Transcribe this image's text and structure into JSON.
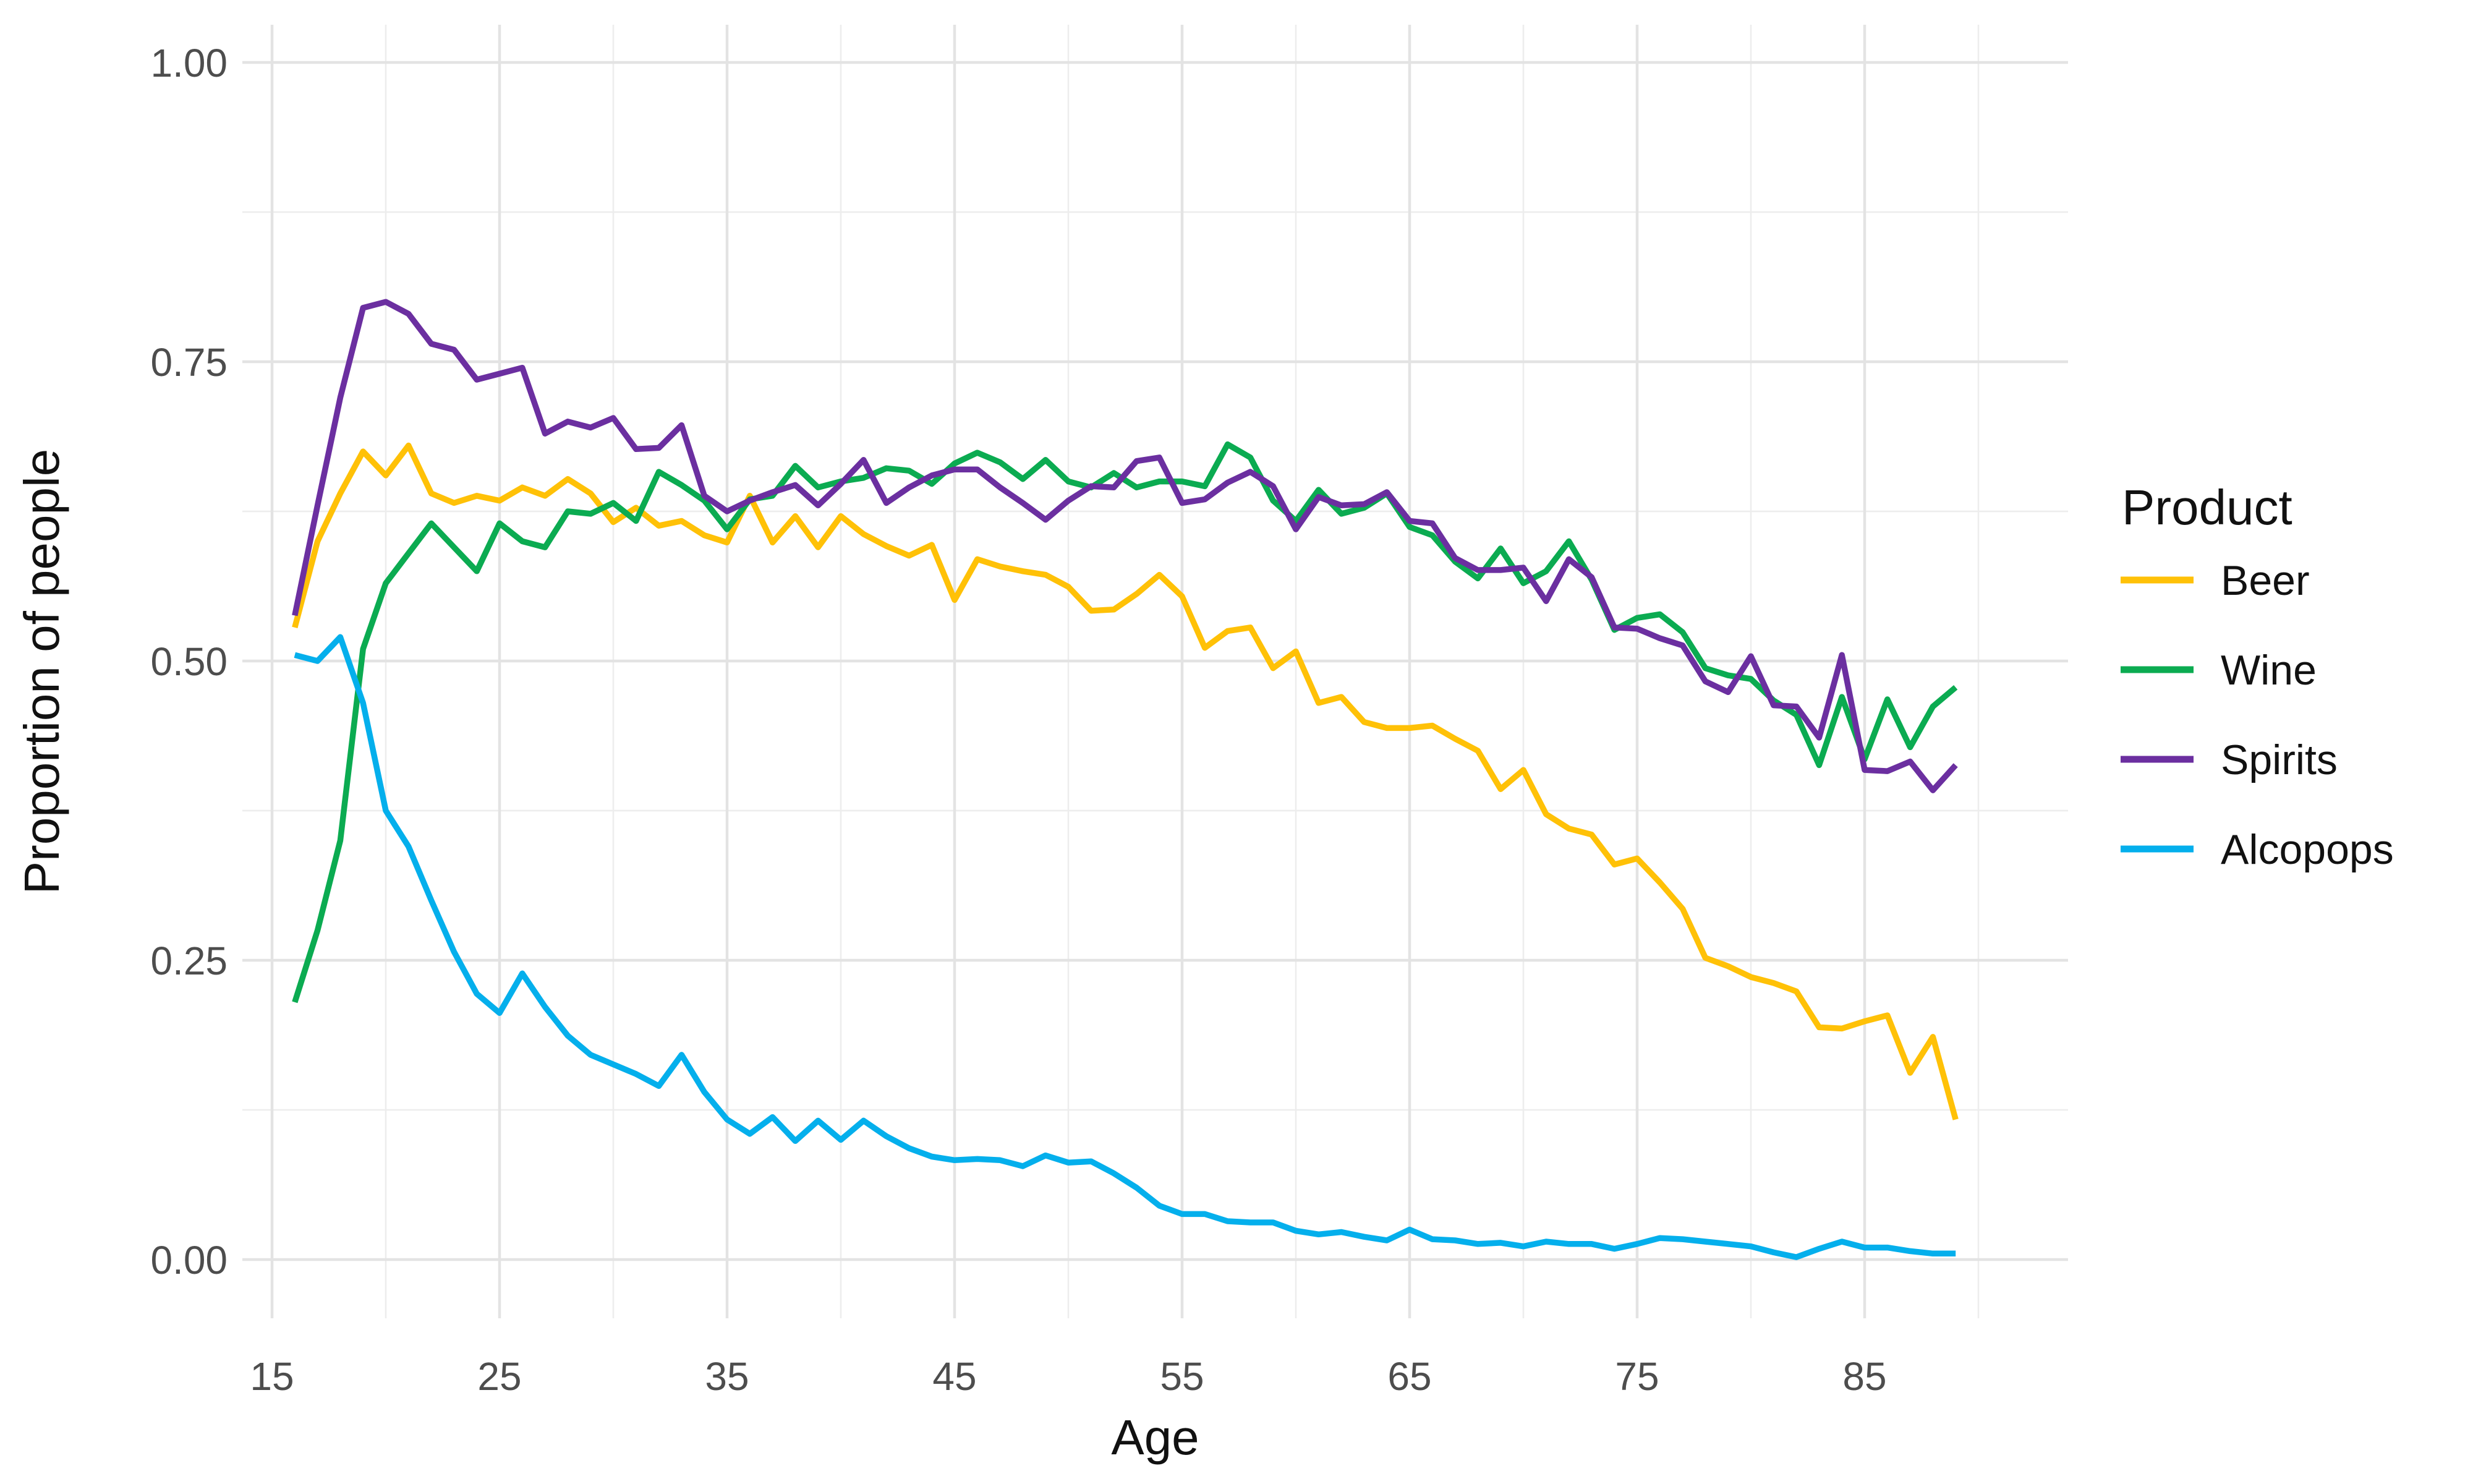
{
  "chart_data": {
    "type": "line",
    "title": "",
    "xlabel": "Age",
    "ylabel": "Proportion of people",
    "legend_title": "Product",
    "legend_position": "right",
    "grid": "on",
    "background": "#ffffff",
    "gridline_color": "#e3e3e3",
    "tick_text_color": "#4d4d4d",
    "x_ticks": [
      {
        "label": "15",
        "value": 15
      },
      {
        "label": "25",
        "value": 25
      },
      {
        "label": "35",
        "value": 35
      },
      {
        "label": "45",
        "value": 45
      },
      {
        "label": "55",
        "value": 55
      },
      {
        "label": "65",
        "value": 65
      },
      {
        "label": "75",
        "value": 75
      },
      {
        "label": "85",
        "value": 85
      }
    ],
    "y_ticks": [
      {
        "label": "0.00",
        "value": 0
      },
      {
        "label": "0.25",
        "value": 0.25
      },
      {
        "label": "0.50",
        "value": 0.5
      },
      {
        "label": "0.75",
        "value": 0.75
      },
      {
        "label": "1.00",
        "value": 1
      }
    ],
    "x_minor_ticks": [
      20,
      30,
      40,
      50,
      60,
      70,
      80,
      90
    ],
    "y_minor_ticks": [
      0.125,
      0.375,
      0.625,
      0.875
    ],
    "xlim": [
      13.7,
      90.5
    ],
    "ylim": [
      -0.049,
      1.081
    ],
    "ages": [
      16,
      17,
      18,
      19,
      20,
      21,
      22,
      23,
      24,
      25,
      26,
      27,
      28,
      29,
      30,
      31,
      32,
      33,
      34,
      35,
      36,
      37,
      38,
      39,
      40,
      41,
      42,
      43,
      44,
      45,
      46,
      47,
      48,
      49,
      50,
      51,
      52,
      53,
      54,
      55,
      56,
      57,
      58,
      59,
      60,
      61,
      62,
      63,
      64,
      65,
      66,
      67,
      68,
      69,
      70,
      71,
      72,
      73,
      74,
      75,
      76,
      77,
      78,
      79,
      80,
      81,
      82,
      83,
      84,
      85,
      86,
      87,
      88,
      89
    ],
    "series": [
      {
        "name": "Beer",
        "color": "#FFC107",
        "values": [
          0.528,
          0.6,
          0.64,
          0.675,
          0.655,
          0.68,
          0.64,
          0.632,
          0.638,
          0.634,
          0.645,
          0.638,
          0.652,
          0.64,
          0.616,
          0.628,
          0.613,
          0.617,
          0.605,
          0.599,
          0.638,
          0.599,
          0.621,
          0.595,
          0.621,
          0.606,
          0.596,
          0.588,
          0.597,
          0.551,
          0.585,
          0.579,
          0.575,
          0.572,
          0.562,
          0.542,
          0.543,
          0.556,
          0.572,
          0.554,
          0.511,
          0.525,
          0.528,
          0.494,
          0.508,
          0.465,
          0.47,
          0.449,
          0.444,
          0.444,
          0.446,
          0.435,
          0.425,
          0.393,
          0.409,
          0.372,
          0.36,
          0.355,
          0.33,
          0.335,
          0.315,
          0.293,
          0.252,
          0.245,
          0.236,
          0.231,
          0.224,
          0.194,
          0.193,
          0.199,
          0.204,
          0.156,
          0.186,
          0.117
        ]
      },
      {
        "name": "Wine",
        "color": "#0BAB51",
        "values": [
          0.215,
          0.275,
          0.35,
          0.51,
          0.565,
          0.59,
          0.615,
          0.595,
          0.575,
          0.615,
          0.6,
          0.595,
          0.625,
          0.623,
          0.632,
          0.617,
          0.658,
          0.647,
          0.634,
          0.61,
          0.635,
          0.638,
          0.663,
          0.645,
          0.65,
          0.653,
          0.661,
          0.659,
          0.648,
          0.665,
          0.674,
          0.666,
          0.652,
          0.668,
          0.65,
          0.645,
          0.657,
          0.645,
          0.65,
          0.65,
          0.646,
          0.681,
          0.67,
          0.634,
          0.617,
          0.643,
          0.623,
          0.628,
          0.64,
          0.612,
          0.605,
          0.583,
          0.569,
          0.594,
          0.565,
          0.575,
          0.6,
          0.568,
          0.526,
          0.536,
          0.539,
          0.524,
          0.494,
          0.488,
          0.485,
          0.467,
          0.455,
          0.413,
          0.47,
          0.418,
          0.468,
          0.428,
          0.462,
          0.478
        ]
      },
      {
        "name": "Spirits",
        "color": "#6B2FA0",
        "values": [
          0.538,
          0.63,
          0.72,
          0.795,
          0.8,
          0.79,
          0.765,
          0.76,
          0.735,
          0.74,
          0.745,
          0.69,
          0.7,
          0.695,
          0.703,
          0.677,
          0.678,
          0.697,
          0.638,
          0.625,
          0.634,
          0.641,
          0.647,
          0.63,
          0.648,
          0.668,
          0.632,
          0.645,
          0.655,
          0.66,
          0.66,
          0.645,
          0.632,
          0.618,
          0.634,
          0.646,
          0.645,
          0.667,
          0.67,
          0.632,
          0.635,
          0.649,
          0.658,
          0.646,
          0.61,
          0.637,
          0.63,
          0.631,
          0.641,
          0.617,
          0.615,
          0.586,
          0.576,
          0.576,
          0.578,
          0.55,
          0.585,
          0.57,
          0.528,
          0.527,
          0.519,
          0.513,
          0.483,
          0.474,
          0.504,
          0.463,
          0.462,
          0.436,
          0.505,
          0.409,
          0.408,
          0.416,
          0.392,
          0.413
        ]
      },
      {
        "name": "Alcopops",
        "color": "#04AFEC",
        "values": [
          0.505,
          0.5,
          0.52,
          0.465,
          0.375,
          0.345,
          0.3,
          0.257,
          0.222,
          0.206,
          0.239,
          0.211,
          0.187,
          0.171,
          0.163,
          0.155,
          0.145,
          0.171,
          0.14,
          0.117,
          0.105,
          0.119,
          0.099,
          0.116,
          0.1,
          0.116,
          0.103,
          0.093,
          0.086,
          0.083,
          0.084,
          0.083,
          0.078,
          0.087,
          0.081,
          0.082,
          0.072,
          0.06,
          0.045,
          0.038,
          0.038,
          0.032,
          0.031,
          0.031,
          0.024,
          0.021,
          0.023,
          0.019,
          0.016,
          0.025,
          0.017,
          0.016,
          0.013,
          0.014,
          0.011,
          0.015,
          0.013,
          0.013,
          0.009,
          0.013,
          0.018,
          0.017,
          0.015,
          0.013,
          0.011,
          0.006,
          0.002,
          0.009,
          0.015,
          0.01,
          0.01,
          0.007,
          0.005,
          0.005
        ]
      }
    ]
  }
}
